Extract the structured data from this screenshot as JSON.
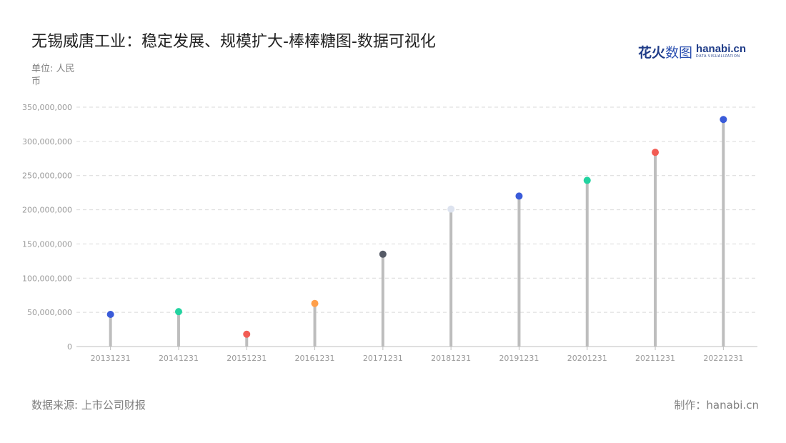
{
  "header": {
    "title": "无锡威唐工业：稳定发展、规模扩大-棒棒糖图-数据可视化",
    "unit": "单位: 人民币"
  },
  "logo": {
    "cn_bold": "花火",
    "cn_light": "数图",
    "en": "hanabi.cn",
    "sub": "DATA VISUALIZATION"
  },
  "footer": {
    "source": "数据来源: 上市公司财报",
    "credit": "制作：hanabi.cn"
  },
  "colors": {
    "stem": "#bdbdbd",
    "grid": "#d9d9d9",
    "axis": "#bfbfbf",
    "tick_text": "#9a9a9a"
  },
  "chart_data": {
    "type": "lollipop",
    "categories": [
      "20131231",
      "20141231",
      "20151231",
      "20161231",
      "20171231",
      "20181231",
      "20191231",
      "20201231",
      "20211231",
      "20221231"
    ],
    "values": [
      47000000,
      51000000,
      18000000,
      63000000,
      135000000,
      201000000,
      220000000,
      243000000,
      284000000,
      332000000
    ],
    "dot_colors": [
      "#3a5bd9",
      "#22d3a0",
      "#f25c54",
      "#ff9f4a",
      "#555a66",
      "#dde3ef",
      "#3a5bd9",
      "#22d3a0",
      "#f25c54",
      "#3a5bd9"
    ],
    "y_ticks": [
      0,
      50000000,
      100000000,
      150000000,
      200000000,
      250000000,
      300000000,
      350000000
    ],
    "y_tick_labels": [
      "0",
      "50,000,000",
      "100,000,000",
      "150,000,000",
      "200,000,000",
      "250,000,000",
      "300,000,000",
      "350,000,000"
    ],
    "ylim": [
      0,
      350000000
    ],
    "grid": true
  }
}
